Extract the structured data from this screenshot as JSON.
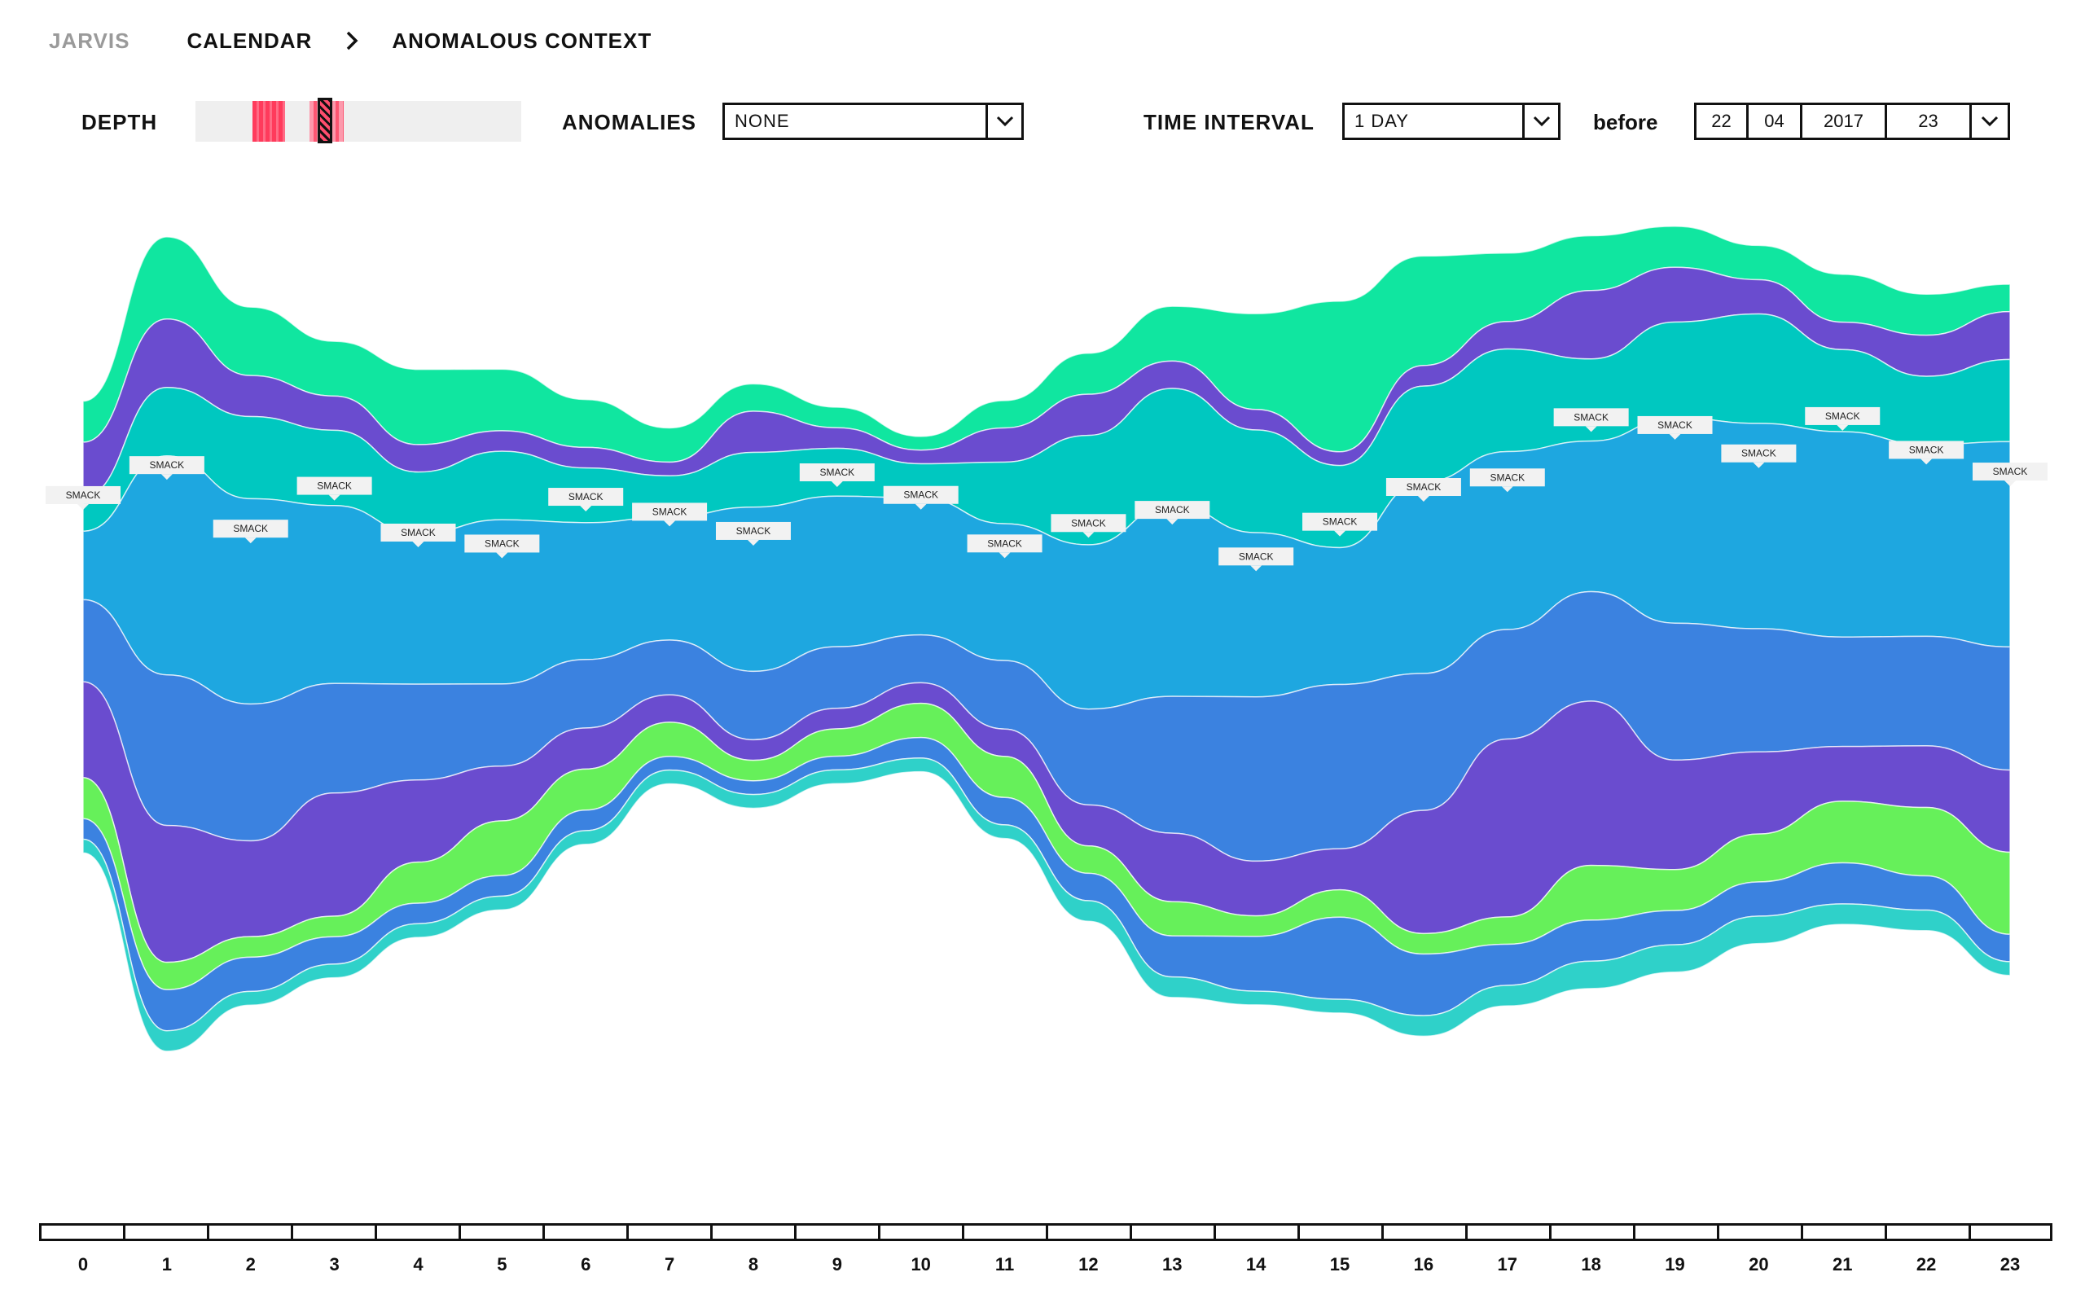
{
  "breadcrumb": {
    "app": "JARVIS",
    "items": [
      "CALENDAR",
      "ANOMALOUS CONTEXT"
    ]
  },
  "controls": {
    "depth_label": "DEPTH",
    "anomalies_label": "ANOMALIES",
    "anomalies_value": "NONE",
    "interval_label": "TIME INTERVAL",
    "interval_value": "1 DAY",
    "before_label": "before",
    "date": {
      "day": "22",
      "month": "04",
      "year": "2017",
      "hour": "23"
    }
  },
  "icons": {
    "separator": "chevron-right-icon",
    "dropdown": "chevron-down-icon"
  },
  "colors": {
    "accent_red": "#ff3b5c",
    "layers": [
      "#10e6a0",
      "#6a4ccf",
      "#3b82e0",
      "#1ea7e0",
      "#00c8c0",
      "#66f05a",
      "#8a4fd6",
      "#2fd1c9"
    ]
  },
  "chart_data": {
    "type": "area",
    "x": [
      0,
      1,
      2,
      3,
      4,
      5,
      6,
      7,
      8,
      9,
      10,
      11,
      12,
      13,
      14,
      15,
      16,
      17,
      18,
      19,
      20,
      21,
      22,
      23
    ],
    "xlabel": "",
    "ylabel": "",
    "grid": false,
    "stream_label": "SMACK",
    "series": [
      {
        "color": "#10e6a0",
        "values": [
          0.6,
          1.2,
          1.0,
          0.8,
          1.1,
          0.9,
          0.7,
          0.5,
          0.4,
          0.3,
          0.2,
          0.4,
          0.6,
          0.8,
          1.4,
          2.2,
          1.6,
          1.0,
          0.8,
          0.6,
          0.5,
          0.7,
          0.6,
          0.4
        ]
      },
      {
        "color": "#6a4ccf",
        "values": [
          0.8,
          1.0,
          0.6,
          0.5,
          0.4,
          0.3,
          0.3,
          0.2,
          0.6,
          0.3,
          0.2,
          0.5,
          0.6,
          0.4,
          0.3,
          0.2,
          0.3,
          0.4,
          1.0,
          0.8,
          0.5,
          0.4,
          0.6,
          0.7
        ]
      },
      {
        "color": "#00c8c0",
        "values": [
          0.5,
          1.0,
          1.2,
          1.1,
          0.9,
          1.0,
          0.8,
          0.6,
          0.8,
          0.7,
          0.5,
          0.9,
          1.6,
          1.7,
          1.5,
          1.2,
          1.4,
          1.5,
          1.2,
          1.4,
          1.6,
          1.2,
          1.0,
          1.2
        ]
      },
      {
        "color": "#1ea7e0",
        "values": [
          1.0,
          3.2,
          3.0,
          2.6,
          2.2,
          2.4,
          2.0,
          1.8,
          2.4,
          2.2,
          2.0,
          2.0,
          2.4,
          2.8,
          2.4,
          2.0,
          2.8,
          2.6,
          2.2,
          3.0,
          3.0,
          3.0,
          2.8,
          3.0
        ]
      },
      {
        "color": "#3b82e0",
        "values": [
          1.2,
          2.2,
          2.0,
          1.6,
          1.4,
          1.2,
          1.0,
          0.8,
          1.0,
          0.9,
          0.7,
          1.0,
          1.4,
          2.0,
          2.4,
          2.4,
          2.0,
          1.6,
          1.6,
          2.0,
          1.8,
          1.6,
          1.6,
          1.8
        ]
      },
      {
        "color": "#6a4ccf",
        "values": [
          1.4,
          2.0,
          1.4,
          1.8,
          1.2,
          0.8,
          0.6,
          0.4,
          0.3,
          0.3,
          0.3,
          0.4,
          0.6,
          1.0,
          0.8,
          0.6,
          1.8,
          2.6,
          2.4,
          1.6,
          1.2,
          0.8,
          0.9,
          1.2
        ]
      },
      {
        "color": "#66f05a",
        "values": [
          0.6,
          0.4,
          0.3,
          0.3,
          0.6,
          0.8,
          0.6,
          0.5,
          0.3,
          0.4,
          0.5,
          0.6,
          0.4,
          0.5,
          0.3,
          0.4,
          0.3,
          0.4,
          0.8,
          0.6,
          0.7,
          0.9,
          1.0,
          1.2
        ]
      },
      {
        "color": "#3b82e0",
        "values": [
          0.3,
          0.6,
          0.5,
          0.4,
          0.3,
          0.3,
          0.3,
          0.2,
          0.2,
          0.2,
          0.3,
          0.4,
          0.4,
          0.6,
          0.8,
          1.2,
          0.9,
          0.6,
          0.6,
          0.5,
          0.5,
          0.6,
          0.5,
          0.4
        ]
      },
      {
        "color": "#2fd1c9",
        "values": [
          0.2,
          0.3,
          0.2,
          0.2,
          0.2,
          0.2,
          0.2,
          0.2,
          0.2,
          0.2,
          0.2,
          0.2,
          0.3,
          0.3,
          0.2,
          0.2,
          0.3,
          0.3,
          0.4,
          0.4,
          0.4,
          0.3,
          0.3,
          0.2
        ]
      }
    ]
  }
}
